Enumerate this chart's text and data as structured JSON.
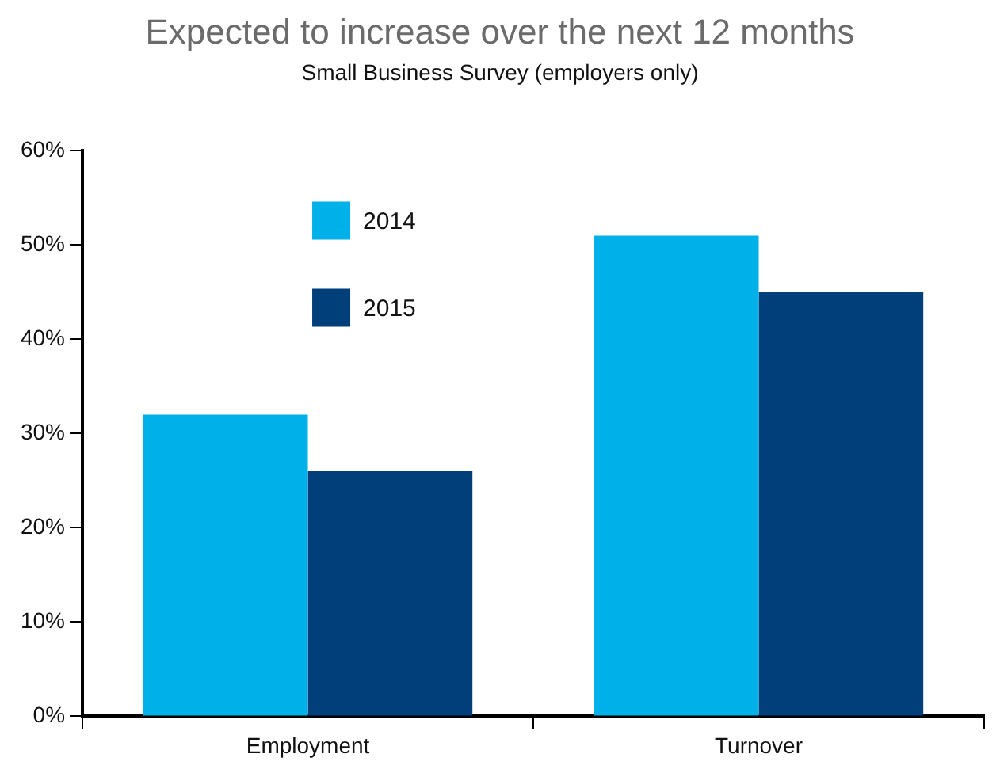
{
  "chart_data": {
    "type": "bar",
    "title": "Expected to increase over the next 12 months",
    "subtitle": "Small Business Survey (employers only)",
    "categories": [
      "Employment",
      "Turnover"
    ],
    "series": [
      {
        "name": "2014",
        "color": "#00b0e8",
        "values": [
          32,
          51
        ]
      },
      {
        "name": "2015",
        "color": "#003f7a",
        "values": [
          26,
          45
        ]
      }
    ],
    "ylim": [
      0,
      60
    ],
    "yticks": [
      {
        "value": 0,
        "label": "0%"
      },
      {
        "value": 10,
        "label": "10%"
      },
      {
        "value": 20,
        "label": "20%"
      },
      {
        "value": 30,
        "label": "30%"
      },
      {
        "value": 40,
        "label": "40%"
      },
      {
        "value": 50,
        "label": "50%"
      },
      {
        "value": 60,
        "label": "60%"
      }
    ],
    "grid": false,
    "legend": "top left"
  }
}
